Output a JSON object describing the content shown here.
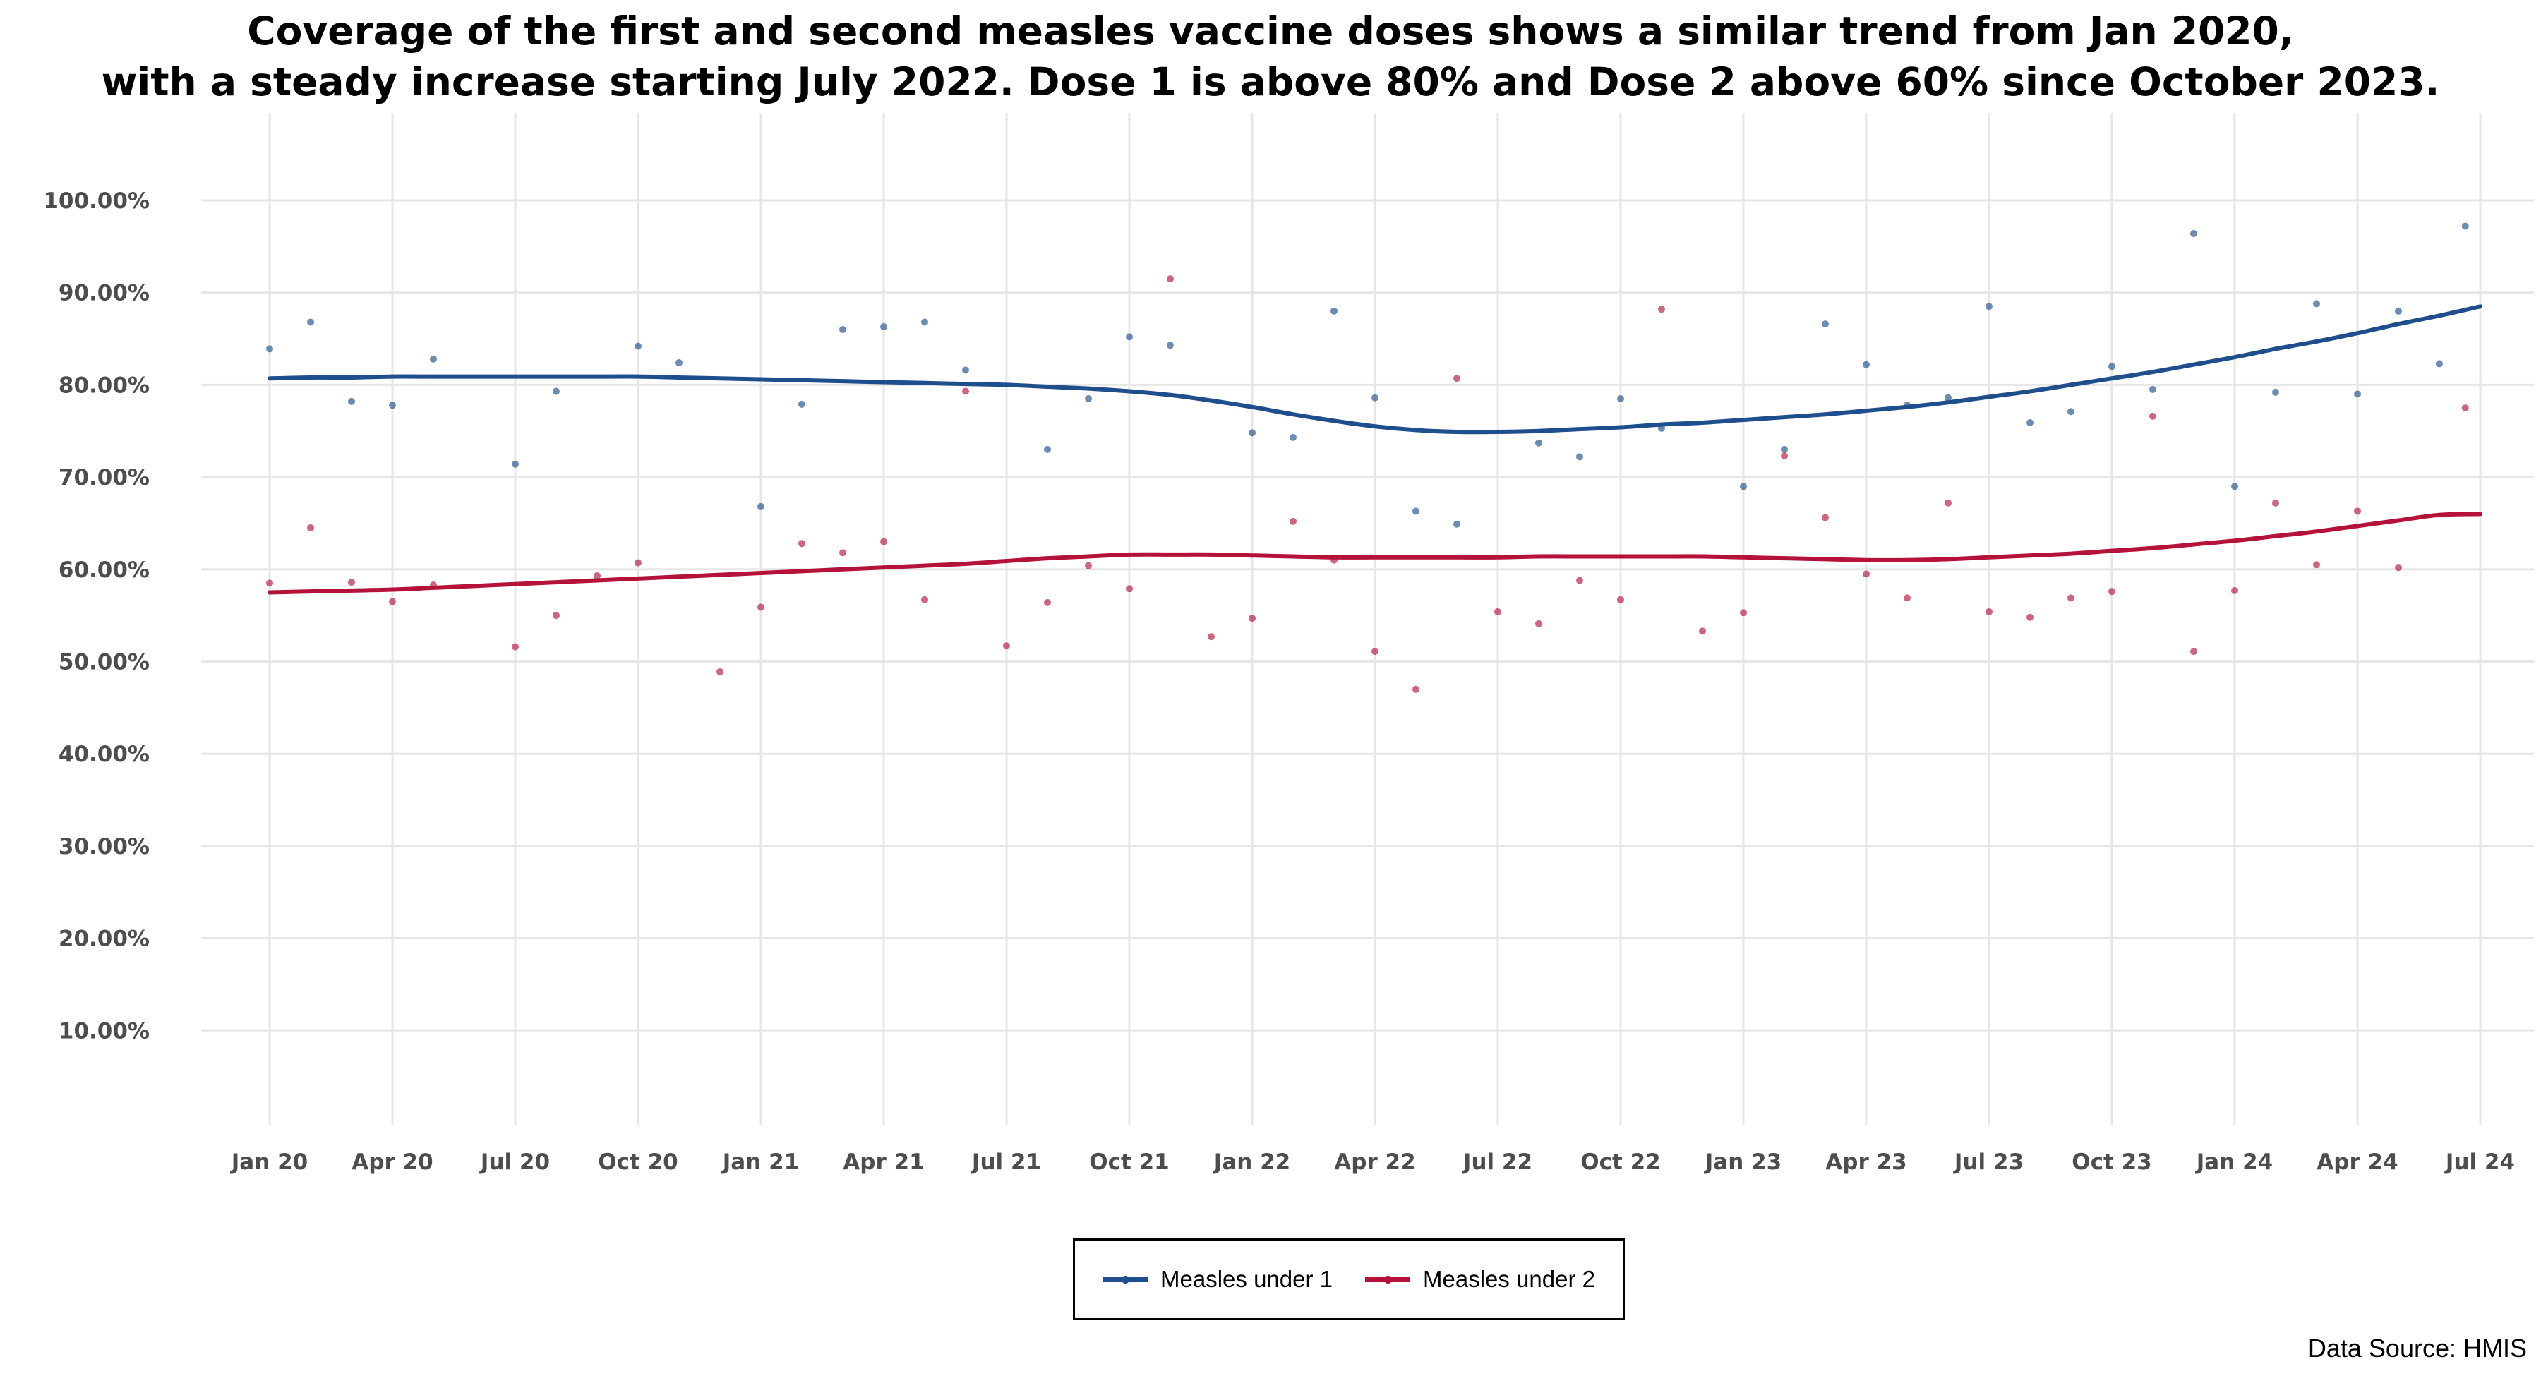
{
  "chart_data": {
    "type": "scatter",
    "title_lines": [
      "Coverage of the first and second measles vaccine doses shows a similar trend from Jan 2020,",
      "with a steady increase starting July 2022. Dose 1 is above 80% and Dose 2 above 60% since October 2023."
    ],
    "xlabel": "",
    "ylabel": "",
    "x_ticks": [
      "Jan 20",
      "Apr 20",
      "Jul 20",
      "Oct 20",
      "Jan 21",
      "Apr 21",
      "Jul 21",
      "Oct 21",
      "Jan 22",
      "Apr 22",
      "Jul 22",
      "Oct 22",
      "Jan 23",
      "Apr 23",
      "Jul 23",
      "Oct 23",
      "Jan 24",
      "Apr 24",
      "Jul 24"
    ],
    "y_ticks": [
      "10.00%",
      "20.00%",
      "30.00%",
      "40.00%",
      "50.00%",
      "60.00%",
      "70.00%",
      "80.00%",
      "90.00%",
      "100.00%"
    ],
    "ylim": [
      0,
      103
    ],
    "grid": true,
    "legend_position": "bottom",
    "x": [
      "2020-01",
      "2020-02",
      "2020-03",
      "2020-04",
      "2020-05",
      "2020-06",
      "2020-07",
      "2020-08",
      "2020-09",
      "2020-10",
      "2020-11",
      "2020-12",
      "2021-01",
      "2021-02",
      "2021-03",
      "2021-04",
      "2021-05",
      "2021-06",
      "2021-07",
      "2021-08",
      "2021-09",
      "2021-10",
      "2021-11",
      "2021-12",
      "2022-01",
      "2022-02",
      "2022-03",
      "2022-04",
      "2022-05",
      "2022-06",
      "2022-07",
      "2022-08",
      "2022-09",
      "2022-10",
      "2022-11",
      "2022-12",
      "2023-01",
      "2023-02",
      "2023-03",
      "2023-04",
      "2023-05",
      "2023-06",
      "2023-07",
      "2023-08",
      "2023-09",
      "2023-10",
      "2023-11",
      "2023-12",
      "2024-01",
      "2024-02",
      "2024-03",
      "2024-04",
      "2024-05",
      "2024-06"
    ],
    "series": [
      {
        "name": "Measles under 1",
        "color": "#1f4e8c",
        "values": [
          83.9,
          86.8,
          78.2,
          77.8,
          82.8,
          null,
          71.4,
          79.3,
          null,
          84.2,
          82.4,
          null,
          66.8,
          77.9,
          86.0,
          86.3,
          86.8,
          81.6,
          null,
          73.0,
          78.5,
          85.2,
          84.3,
          null,
          74.8,
          74.3,
          88.0,
          78.6,
          66.3,
          64.9,
          null,
          73.7,
          72.2,
          78.5,
          75.3,
          null,
          69.0,
          73.0,
          86.6,
          82.2,
          77.8,
          78.6,
          88.5,
          75.9,
          77.1,
          82.0,
          79.5,
          96.4,
          69.0,
          79.2,
          88.8,
          79.0,
          88.0,
          82.3
        ],
        "extra_points": [
          {
            "x": "2024-06-20",
            "value": 97.2
          }
        ],
        "trend": [
          80.7,
          80.8,
          80.8,
          80.9,
          80.9,
          80.9,
          80.9,
          80.9,
          80.9,
          80.9,
          80.8,
          80.7,
          80.6,
          80.5,
          80.4,
          80.3,
          80.2,
          80.1,
          80.0,
          79.8,
          79.6,
          79.3,
          78.9,
          78.3,
          77.6,
          76.8,
          76.1,
          75.5,
          75.1,
          74.9,
          74.9,
          75.0,
          75.2,
          75.4,
          75.7,
          75.9,
          76.2,
          76.5,
          76.8,
          77.2,
          77.6,
          78.1,
          78.7,
          79.3,
          80.0,
          80.7,
          81.4,
          82.2,
          83.0,
          83.9,
          84.7,
          85.6,
          86.6,
          87.5,
          88.5
        ]
      },
      {
        "name": "Measles under 2",
        "color": "#b5123a",
        "values": [
          58.5,
          64.5,
          58.6,
          56.5,
          58.3,
          null,
          51.6,
          55.0,
          59.3,
          60.7,
          null,
          48.9,
          55.9,
          62.8,
          61.8,
          63.0,
          56.7,
          79.3,
          51.7,
          56.4,
          60.4,
          57.9,
          91.5,
          52.7,
          54.7,
          65.2,
          61.0,
          51.1,
          47.0,
          80.7,
          55.4,
          54.1,
          58.8,
          56.7,
          88.2,
          53.3,
          55.3,
          72.3,
          65.6,
          59.5,
          56.9,
          67.2,
          55.4,
          54.8,
          56.9,
          57.6,
          76.6,
          51.1,
          57.7,
          67.2,
          60.5,
          66.3,
          60.2,
          null
        ],
        "extra_points": [
          {
            "x": "2024-06-20",
            "value": 77.5
          }
        ],
        "trend": [
          57.5,
          57.6,
          57.7,
          57.8,
          58.0,
          58.2,
          58.4,
          58.6,
          58.8,
          59.0,
          59.2,
          59.4,
          59.6,
          59.8,
          60.0,
          60.2,
          60.4,
          60.6,
          60.9,
          61.2,
          61.4,
          61.6,
          61.6,
          61.6,
          61.5,
          61.4,
          61.3,
          61.3,
          61.3,
          61.3,
          61.3,
          61.4,
          61.4,
          61.4,
          61.4,
          61.4,
          61.3,
          61.2,
          61.1,
          61.0,
          61.0,
          61.1,
          61.3,
          61.5,
          61.7,
          62.0,
          62.3,
          62.7,
          63.1,
          63.6,
          64.1,
          64.7,
          65.3,
          65.9,
          66.0
        ]
      }
    ]
  },
  "legend": {
    "items": [
      {
        "label": "Measles under 1",
        "color": "#1f4e8c"
      },
      {
        "label": "Measles under 2",
        "color": "#b5123a"
      }
    ]
  },
  "source_note": "Data Source: HMIS"
}
